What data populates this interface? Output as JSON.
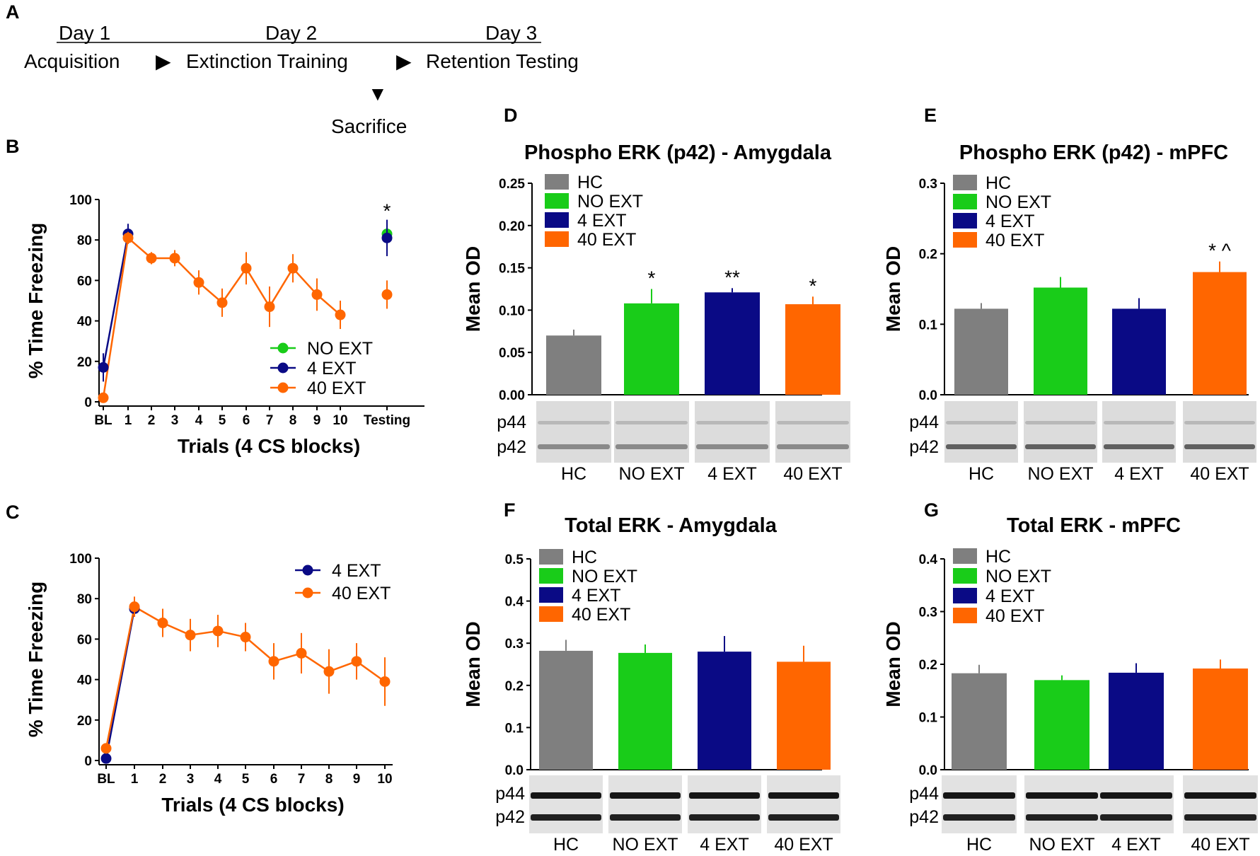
{
  "panel_labels": {
    "a": "A",
    "b": "B",
    "c": "C",
    "d": "D",
    "e": "E",
    "f": "F",
    "g": "G"
  },
  "timeline": {
    "days": [
      "Day 1",
      "Day 2",
      "Day 3"
    ],
    "steps": [
      "Acquisition",
      "Extinction Training",
      "Retention Testing"
    ],
    "arrow_glyph": "▶",
    "down_glyph": "▼",
    "sacrifice": "Sacrifice"
  },
  "colors": {
    "HC": "#7f7f7f",
    "NO EXT": "#19cc19",
    "4 EXT": "#0a0a85",
    "40 EXT": "#ff6600"
  },
  "blot_labels": {
    "upper": "p44",
    "lower": "p42"
  },
  "chart_data": [
    {
      "id": "B",
      "type": "line",
      "xlabel": "Trials (4 CS blocks)",
      "ylabel": "% Time Freezing",
      "ylim": [
        0,
        100
      ],
      "yticks": [
        0,
        20,
        40,
        60,
        80,
        100
      ],
      "xticks": [
        "BL",
        "1",
        "2",
        "3",
        "4",
        "5",
        "6",
        "7",
        "8",
        "9",
        "10",
        "Testing"
      ],
      "annotation": "*",
      "legend": [
        "NO EXT",
        "4 EXT",
        "40 EXT"
      ],
      "series": [
        {
          "name": "NO EXT",
          "points": [
            {
              "x": "Testing",
              "y": 83,
              "err": 5
            }
          ]
        },
        {
          "name": "4 EXT",
          "points": [
            {
              "x": "BL",
              "y": 17,
              "err": 7
            },
            {
              "x": "1",
              "y": 83,
              "err": 5
            },
            {
              "x": "Testing",
              "y": 81,
              "err": 9
            }
          ]
        },
        {
          "name": "40 EXT",
          "points": [
            {
              "x": "BL",
              "y": 2,
              "err": 2
            },
            {
              "x": "1",
              "y": 81,
              "err": 3
            },
            {
              "x": "2",
              "y": 71,
              "err": 3
            },
            {
              "x": "3",
              "y": 71,
              "err": 4
            },
            {
              "x": "4",
              "y": 59,
              "err": 6
            },
            {
              "x": "5",
              "y": 49,
              "err": 7
            },
            {
              "x": "6",
              "y": 66,
              "err": 8
            },
            {
              "x": "7",
              "y": 47,
              "err": 10
            },
            {
              "x": "8",
              "y": 66,
              "err": 7
            },
            {
              "x": "9",
              "y": 53,
              "err": 8
            },
            {
              "x": "10",
              "y": 43,
              "err": 7
            },
            {
              "x": "Testing",
              "y": 53,
              "err": 7
            }
          ]
        }
      ]
    },
    {
      "id": "C",
      "type": "line",
      "xlabel": "Trials (4 CS blocks)",
      "ylabel": "% Time Freezing",
      "ylim": [
        0,
        100
      ],
      "yticks": [
        0,
        20,
        40,
        60,
        80,
        100
      ],
      "xticks": [
        "BL",
        "1",
        "2",
        "3",
        "4",
        "5",
        "6",
        "7",
        "8",
        "9",
        "10"
      ],
      "legend": [
        "4 EXT",
        "40 EXT"
      ],
      "series": [
        {
          "name": "4 EXT",
          "points": [
            {
              "x": "BL",
              "y": 1,
              "err": 1
            },
            {
              "x": "1",
              "y": 75,
              "err": 4
            }
          ]
        },
        {
          "name": "40 EXT",
          "points": [
            {
              "x": "BL",
              "y": 6,
              "err": 2
            },
            {
              "x": "1",
              "y": 76,
              "err": 5
            },
            {
              "x": "2",
              "y": 68,
              "err": 7
            },
            {
              "x": "3",
              "y": 62,
              "err": 8
            },
            {
              "x": "4",
              "y": 64,
              "err": 8
            },
            {
              "x": "5",
              "y": 61,
              "err": 7
            },
            {
              "x": "6",
              "y": 49,
              "err": 9
            },
            {
              "x": "7",
              "y": 53,
              "err": 10
            },
            {
              "x": "8",
              "y": 44,
              "err": 11
            },
            {
              "x": "9",
              "y": 49,
              "err": 9
            },
            {
              "x": "10",
              "y": 39,
              "err": 12
            }
          ]
        }
      ]
    },
    {
      "id": "D",
      "type": "bar",
      "title": "Phospho ERK (p42) - Amygdala",
      "ylabel": "Mean OD",
      "ylim": [
        0,
        0.25
      ],
      "yticks": [
        "0.00",
        "0.05",
        "0.10",
        "0.15",
        "0.20",
        "0.25"
      ],
      "categories": [
        "HC",
        "NO EXT",
        "4 EXT",
        "40 EXT"
      ],
      "values": [
        0.07,
        0.108,
        0.121,
        0.107
      ],
      "errors": [
        0.007,
        0.017,
        0.005,
        0.009
      ],
      "annotations": [
        "",
        "*",
        "**",
        "*"
      ],
      "legend": [
        "HC",
        "NO EXT",
        "4 EXT",
        "40 EXT"
      ]
    },
    {
      "id": "E",
      "type": "bar",
      "title": "Phospho ERK (p42) - mPFC",
      "ylabel": "Mean OD",
      "ylim": [
        0,
        0.3
      ],
      "yticks": [
        "0.0",
        "0.1",
        "0.2",
        "0.3"
      ],
      "categories": [
        "HC",
        "NO EXT",
        "4 EXT",
        "40 EXT"
      ],
      "values": [
        0.122,
        0.152,
        0.122,
        0.174
      ],
      "errors": [
        0.008,
        0.015,
        0.015,
        0.015
      ],
      "annotations": [
        "",
        "",
        "",
        "* ^"
      ],
      "legend": [
        "HC",
        "NO EXT",
        "4 EXT",
        "40 EXT"
      ]
    },
    {
      "id": "F",
      "type": "bar",
      "title": "Total ERK - Amygdala",
      "ylabel": "Mean OD",
      "ylim": [
        0,
        0.5
      ],
      "yticks": [
        "0.0",
        "0.1",
        "0.2",
        "0.3",
        "0.4",
        "0.5"
      ],
      "categories": [
        "HC",
        "NO EXT",
        "4 EXT",
        "40 EXT"
      ],
      "values": [
        0.282,
        0.277,
        0.28,
        0.256
      ],
      "errors": [
        0.026,
        0.02,
        0.037,
        0.038
      ],
      "annotations": [
        "",
        "",
        "",
        ""
      ],
      "legend": [
        "HC",
        "NO EXT",
        "4 EXT",
        "40 EXT"
      ]
    },
    {
      "id": "G",
      "type": "bar",
      "title": "Total ERK - mPFC",
      "ylabel": "Mean OD",
      "ylim": [
        0,
        0.4
      ],
      "yticks": [
        "0.0",
        "0.1",
        "0.2",
        "0.3",
        "0.4"
      ],
      "categories": [
        "HC",
        "NO EXT",
        "4 EXT",
        "40 EXT"
      ],
      "values": [
        0.183,
        0.17,
        0.184,
        0.192
      ],
      "errors": [
        0.016,
        0.009,
        0.018,
        0.017
      ],
      "annotations": [
        "",
        "",
        "",
        ""
      ],
      "legend": [
        "HC",
        "NO EXT",
        "4 EXT",
        "40 EXT"
      ]
    }
  ]
}
